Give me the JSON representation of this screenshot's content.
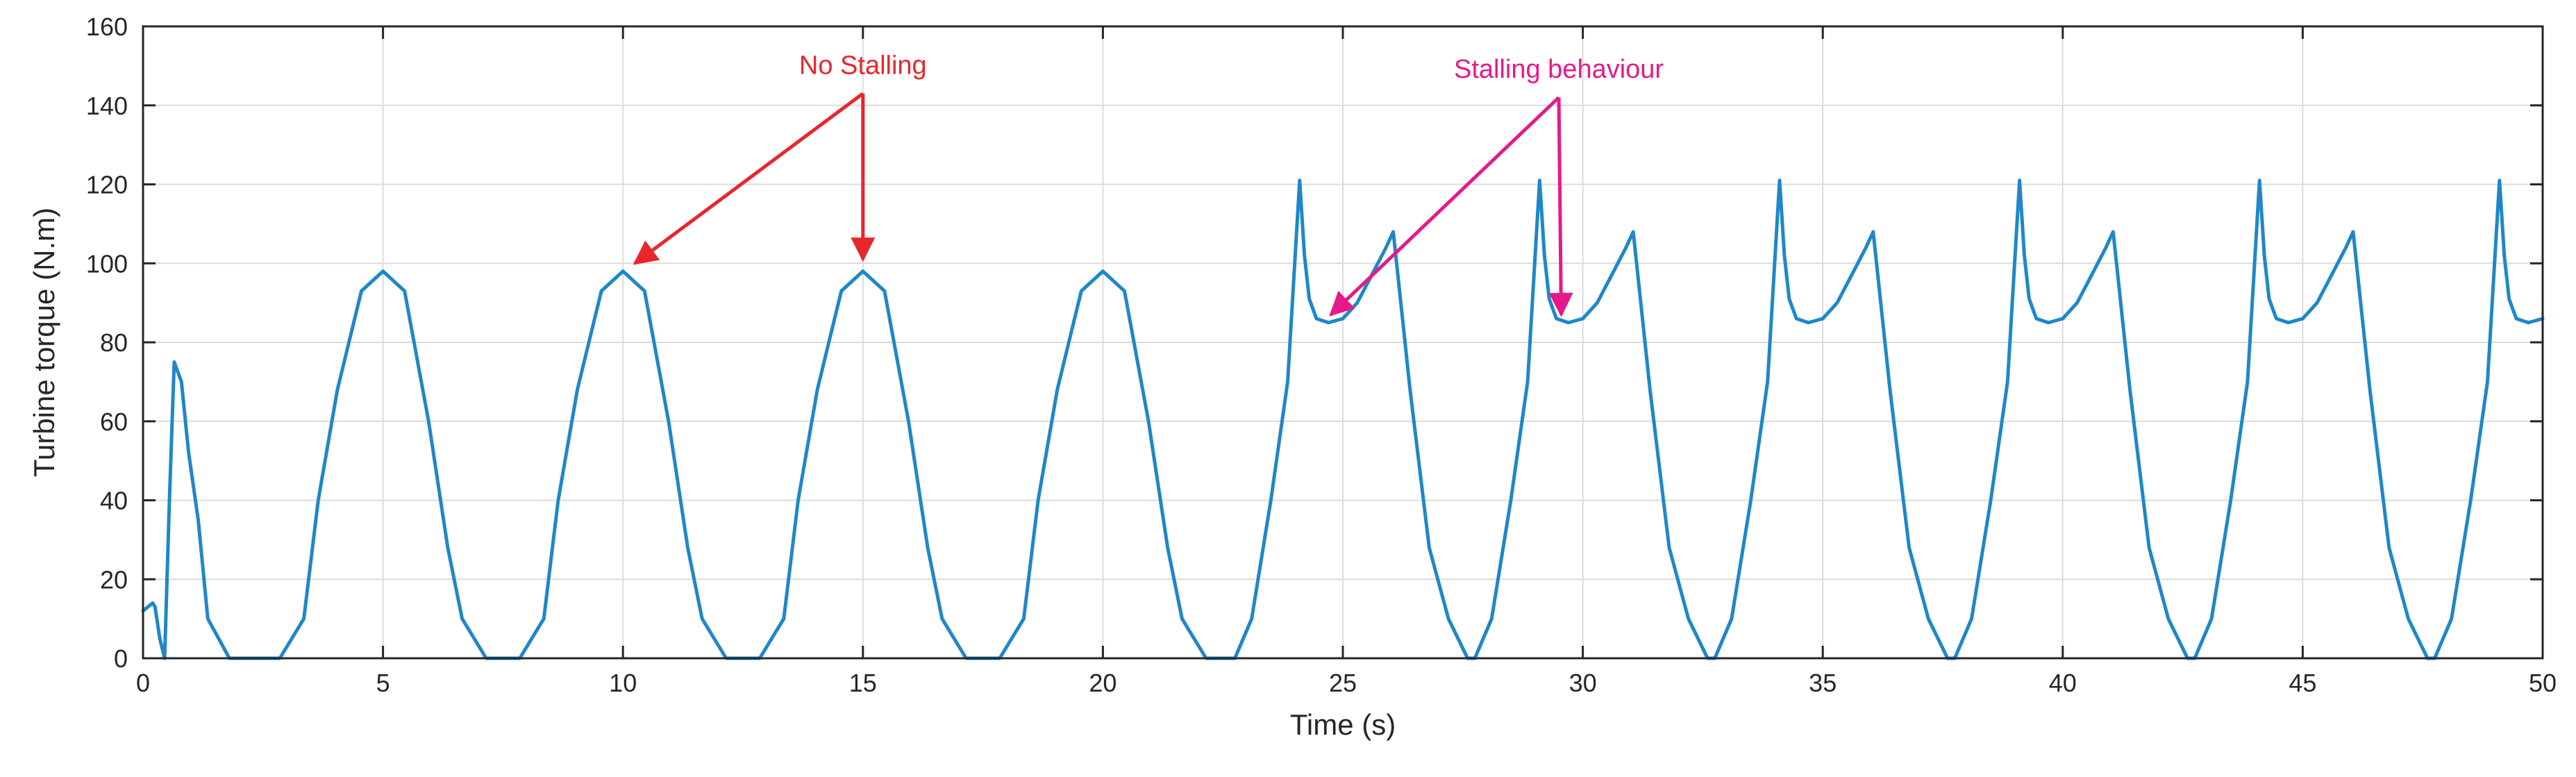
{
  "chart_data": {
    "type": "line",
    "title": "",
    "xlabel": "Time (s)",
    "ylabel": "Turbine torque (N.m)",
    "xlim": [
      0,
      50
    ],
    "ylim": [
      0,
      160
    ],
    "xticks": [
      0,
      5,
      10,
      15,
      20,
      25,
      30,
      35,
      40,
      45,
      50
    ],
    "yticks": [
      0,
      20,
      40,
      60,
      80,
      100,
      120,
      140,
      160
    ],
    "grid": true,
    "series": [
      {
        "name": "Turbine torque",
        "color": "#1f87c8",
        "x": [
          0,
          0.2,
          0.25,
          0.35,
          0.45,
          0.55,
          0.65,
          0.8,
          0.95,
          1.15,
          1.35,
          1.8,
          2.1,
          2.85,
          3.35,
          3.65,
          4.05,
          4.55,
          5.0,
          5.45,
          5.95,
          6.35,
          6.65,
          7.15,
          7.85,
          8.35,
          8.65,
          9.05,
          9.55,
          10.0,
          10.45,
          10.95,
          11.35,
          11.65,
          12.15,
          12.85,
          13.35,
          13.65,
          14.05,
          14.55,
          15.0,
          15.45,
          15.95,
          16.35,
          16.65,
          17.15,
          17.85,
          18.35,
          18.65,
          19.05,
          19.55,
          20.0,
          20.45,
          20.95,
          21.35,
          21.65,
          22.15,
          22.75,
          23.1,
          23.5,
          23.85,
          24.1,
          24.2,
          24.3,
          24.45,
          24.7,
          25.0,
          25.3,
          25.6,
          25.9,
          26.05,
          26.4,
          26.8,
          27.2,
          27.6,
          27.75,
          28.1,
          28.5,
          28.85,
          29.1,
          29.2,
          29.3,
          29.45,
          29.7,
          30.0,
          30.3,
          30.6,
          30.9,
          31.05,
          31.4,
          31.8,
          32.2,
          32.6,
          32.75,
          33.1,
          33.5,
          33.85,
          34.1,
          34.2,
          34.3,
          34.45,
          34.7,
          35.0,
          35.3,
          35.6,
          35.9,
          36.05,
          36.4,
          36.8,
          37.2,
          37.6,
          37.75,
          38.1,
          38.5,
          38.85,
          39.1,
          39.2,
          39.3,
          39.45,
          39.7,
          40.0,
          40.3,
          40.6,
          40.9,
          41.05,
          41.4,
          41.8,
          42.2,
          42.6,
          42.75,
          43.1,
          43.5,
          43.85,
          44.1,
          44.2,
          44.3,
          44.45,
          44.7,
          45.0,
          45.3,
          45.6,
          45.9,
          46.05,
          46.4,
          46.8,
          47.2,
          47.6,
          47.75,
          48.1,
          48.5,
          48.85,
          49.1,
          49.2,
          49.3,
          49.45,
          49.7,
          50.0
        ],
        "y": [
          12,
          14,
          13,
          5,
          0,
          40,
          75,
          70,
          52,
          35,
          10,
          0,
          0,
          0,
          10,
          40,
          68,
          93,
          98,
          93,
          60,
          28,
          10,
          0,
          0,
          10,
          40,
          68,
          93,
          98,
          93,
          60,
          28,
          10,
          0,
          0,
          10,
          40,
          68,
          93,
          98,
          93,
          60,
          28,
          10,
          0,
          0,
          10,
          40,
          68,
          93,
          98,
          93,
          60,
          28,
          10,
          0,
          0,
          10,
          40,
          70,
          121,
          102,
          91,
          86,
          85,
          86,
          90,
          97,
          104,
          108,
          68,
          28,
          10,
          0,
          0,
          10,
          40,
          70,
          121,
          102,
          91,
          86,
          85,
          86,
          90,
          97,
          104,
          108,
          68,
          28,
          10,
          0,
          0,
          10,
          40,
          70,
          121,
          102,
          91,
          86,
          85,
          86,
          90,
          97,
          104,
          108,
          68,
          28,
          10,
          0,
          0,
          10,
          40,
          70,
          121,
          102,
          91,
          86,
          85,
          86,
          90,
          97,
          104,
          108,
          68,
          28,
          10,
          0,
          0,
          10,
          40,
          70,
          121,
          102,
          91,
          86,
          85,
          86,
          90,
          97,
          104,
          108,
          68,
          28,
          10,
          0,
          0,
          10,
          40,
          70,
          121,
          102,
          91,
          86,
          85,
          86
        ]
      }
    ],
    "annotations": [
      {
        "text": "No Stalling",
        "color": "#e8262c",
        "text_at": [
          15.0,
          148
        ],
        "arrows": [
          {
            "from": [
              15.0,
              143
            ],
            "to": [
              10.25,
              100
            ]
          },
          {
            "from": [
              15.0,
              143
            ],
            "to": [
              15.0,
              101
            ]
          }
        ]
      },
      {
        "text": "Stalling behaviour",
        "color": "#e6198a",
        "text_at": [
          29.5,
          147
        ],
        "arrows": [
          {
            "from": [
              29.5,
              142
            ],
            "to": [
              24.75,
              87
            ]
          },
          {
            "from": [
              29.5,
              142
            ],
            "to": [
              29.55,
              87
            ]
          }
        ]
      }
    ]
  }
}
